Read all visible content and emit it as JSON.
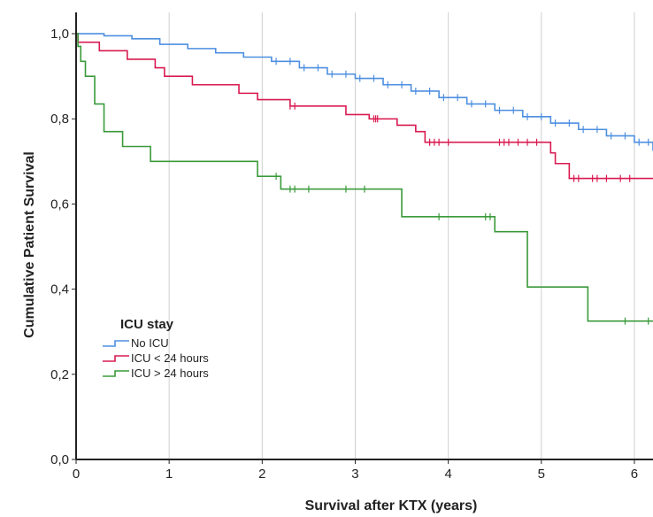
{
  "chart_data": {
    "type": "line",
    "subtype": "kaplan-meier step curves with censoring tick marks",
    "xlabel": "Survival after KTX (years)",
    "ylabel": "Cumulative Patient Survival",
    "xlim": [
      0,
      6.2
    ],
    "ylim": [
      0,
      1.05
    ],
    "x_ticks": [
      0,
      1,
      2,
      3,
      4,
      5,
      6
    ],
    "x_tick_labels": [
      "0",
      "1",
      "2",
      "3",
      "4",
      "5",
      "6"
    ],
    "y_ticks": [
      0,
      0.2,
      0.4,
      0.6,
      0.8,
      1.0
    ],
    "y_tick_labels": [
      "0,0",
      "0,2",
      "0,4",
      "0,6",
      "0,8",
      "1,0"
    ],
    "grid": "vertical gridlines at x ticks",
    "legend": {
      "title": "ICU stay",
      "placement": "lower-left",
      "entries": [
        "No ICU",
        "ICU < 24 hours",
        "ICU > 24 hours"
      ]
    },
    "series": [
      {
        "name": "No ICU",
        "color": "#4d8fe0",
        "points": [
          [
            0,
            1.0
          ],
          [
            0.3,
            0.995
          ],
          [
            0.6,
            0.988
          ],
          [
            0.9,
            0.975
          ],
          [
            1.2,
            0.965
          ],
          [
            1.5,
            0.955
          ],
          [
            1.8,
            0.945
          ],
          [
            2.1,
            0.935
          ],
          [
            2.4,
            0.92
          ],
          [
            2.7,
            0.905
          ],
          [
            3.0,
            0.895
          ],
          [
            3.3,
            0.88
          ],
          [
            3.6,
            0.865
          ],
          [
            3.9,
            0.85
          ],
          [
            4.2,
            0.835
          ],
          [
            4.5,
            0.82
          ],
          [
            4.8,
            0.805
          ],
          [
            5.1,
            0.79
          ],
          [
            5.4,
            0.775
          ],
          [
            5.7,
            0.76
          ],
          [
            6.0,
            0.745
          ],
          [
            6.2,
            0.725
          ]
        ],
        "censor_times": [
          2.15,
          2.3,
          2.45,
          2.6,
          2.75,
          2.9,
          3.05,
          3.2,
          3.35,
          3.5,
          3.65,
          3.8,
          3.95,
          4.1,
          4.25,
          4.4,
          4.55,
          4.7,
          4.85,
          5.0,
          5.15,
          5.3,
          5.45,
          5.6,
          5.75,
          5.9,
          6.05,
          6.15
        ]
      },
      {
        "name": "ICU < 24 hours",
        "color": "#d81b50",
        "points": [
          [
            0,
            1.0
          ],
          [
            0.02,
            0.98
          ],
          [
            0.25,
            0.96
          ],
          [
            0.55,
            0.94
          ],
          [
            0.85,
            0.92
          ],
          [
            0.95,
            0.9
          ],
          [
            1.25,
            0.88
          ],
          [
            1.75,
            0.86
          ],
          [
            1.95,
            0.845
          ],
          [
            2.3,
            0.83
          ],
          [
            2.9,
            0.81
          ],
          [
            3.15,
            0.8
          ],
          [
            3.45,
            0.785
          ],
          [
            3.65,
            0.77
          ],
          [
            3.75,
            0.745
          ],
          [
            5.1,
            0.72
          ],
          [
            5.15,
            0.695
          ],
          [
            5.3,
            0.66
          ],
          [
            6.2,
            0.66
          ]
        ],
        "censor_times": [
          2.3,
          2.35,
          3.2,
          3.22,
          3.24,
          3.8,
          3.85,
          3.9,
          4.0,
          4.55,
          4.6,
          4.65,
          4.75,
          4.85,
          4.95,
          5.35,
          5.4,
          5.55,
          5.6,
          5.7,
          5.85,
          5.95
        ]
      },
      {
        "name": "ICU > 24 hours",
        "color": "#3a9a3a",
        "points": [
          [
            0,
            1.0
          ],
          [
            0.02,
            0.97
          ],
          [
            0.05,
            0.935
          ],
          [
            0.1,
            0.9
          ],
          [
            0.2,
            0.835
          ],
          [
            0.3,
            0.77
          ],
          [
            0.5,
            0.735
          ],
          [
            0.8,
            0.7
          ],
          [
            1.95,
            0.665
          ],
          [
            2.2,
            0.635
          ],
          [
            3.5,
            0.57
          ],
          [
            4.5,
            0.535
          ],
          [
            4.85,
            0.405
          ],
          [
            5.5,
            0.325
          ],
          [
            6.2,
            0.325
          ]
        ],
        "censor_times": [
          2.15,
          2.3,
          2.35,
          2.5,
          2.9,
          3.1,
          3.9,
          4.4,
          4.45,
          5.9,
          6.15
        ]
      }
    ]
  }
}
